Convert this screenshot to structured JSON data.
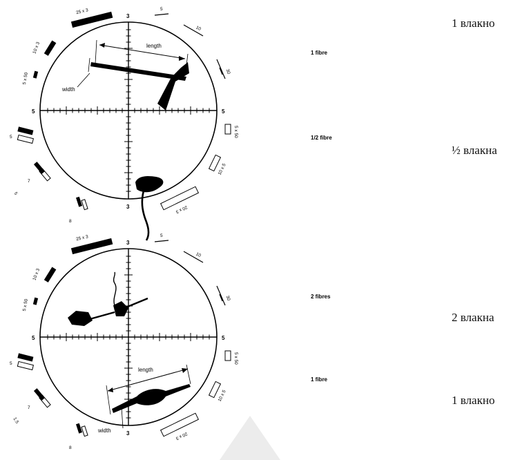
{
  "graticule_top": {
    "axis": {
      "top": "3",
      "bottom": "3",
      "left": "5",
      "right": "5"
    },
    "width_label": "width",
    "length_label": "length",
    "scale_labels": {
      "s25x3": "25 x 3",
      "s10x3": "10 x 3",
      "s5x50": "5 x 50",
      "t5": "5",
      "t10": "10",
      "t30": "30",
      "r5x50": "5 x 50",
      "r10x5": "10 x 5",
      "r20x3": "20 x 3",
      "l5": "5",
      "l7": "7",
      "l5b": "5",
      "l8": "8"
    }
  },
  "graticule_bottom": {
    "axis": {
      "top": "3",
      "bottom": "3",
      "left": "5",
      "right": "5"
    },
    "width_label": "width",
    "length_label": "length",
    "scale_labels": {
      "s25x3": "25 x 3",
      "s10x3": "10 x 3",
      "s5x50": "5 x 50",
      "t5": "5",
      "t10": "10",
      "t30": "30",
      "r5x50": "5 x 50",
      "r10x5": "10 x 5",
      "r20x3": "20 x 3",
      "l5": "5",
      "l7": "7",
      "l5b": "1.5",
      "l8": "8"
    }
  },
  "middle_labels": {
    "top_1": "1 fibre",
    "top_2": "1/2 fibre",
    "bottom_1": "2 fibres",
    "bottom_2": "1 fibre"
  },
  "russian_labels": {
    "r1": "1 влакно",
    "r2": "½ влакна",
    "r3": "2 влакна",
    "r4": "1 влакно"
  }
}
